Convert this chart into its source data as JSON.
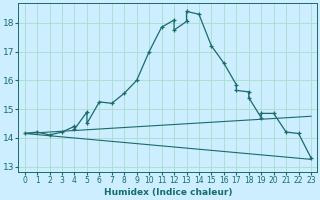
{
  "title": "",
  "xlabel": "Humidex (Indice chaleur)",
  "bg_color": "#cceeff",
  "line_color": "#1a6b6b",
  "grid_color": "#aaddcc",
  "xlim": [
    -0.5,
    23.5
  ],
  "ylim": [
    12.8,
    18.7
  ],
  "yticks": [
    13,
    14,
    15,
    16,
    17,
    18
  ],
  "xticks": [
    0,
    1,
    2,
    3,
    4,
    5,
    6,
    7,
    8,
    9,
    10,
    11,
    12,
    13,
    14,
    15,
    16,
    17,
    18,
    19,
    20,
    21,
    22,
    23
  ],
  "main_x": [
    0,
    1,
    2,
    3,
    4,
    4,
    5,
    5,
    6,
    7,
    8,
    9,
    10,
    11,
    12,
    12,
    13,
    13,
    14,
    15,
    16,
    17,
    17,
    18,
    18,
    19,
    19,
    20,
    21,
    22,
    23
  ],
  "main_y": [
    14.15,
    14.2,
    14.1,
    14.2,
    14.4,
    14.3,
    14.9,
    14.5,
    15.25,
    15.2,
    15.55,
    16.0,
    17.0,
    17.85,
    18.1,
    17.75,
    18.05,
    18.4,
    18.3,
    17.2,
    16.6,
    15.85,
    15.65,
    15.6,
    15.4,
    14.7,
    14.85,
    14.85,
    14.2,
    14.15,
    13.3
  ],
  "line1_x": [
    0,
    23
  ],
  "line1_y": [
    14.15,
    14.75
  ],
  "line2_x": [
    0,
    23
  ],
  "line2_y": [
    14.15,
    13.25
  ]
}
